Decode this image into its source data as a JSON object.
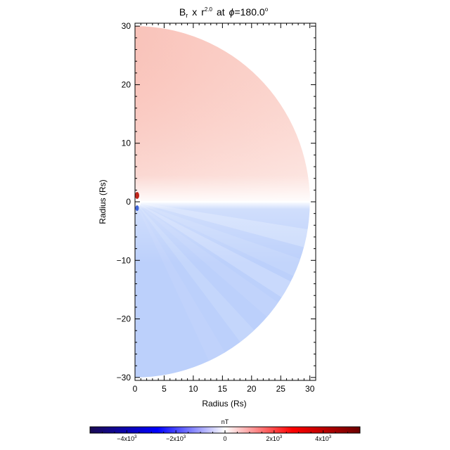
{
  "chart_data": {
    "type": "heatmap",
    "title": {
      "quantity": "B",
      "subscript": "r",
      "times": "x",
      "base": "r",
      "exponent": "2.0",
      "at": "at",
      "angle_symbol": "ϕ",
      "angle_value": "=180.0",
      "degree": "o"
    },
    "xlabel": "Radius (Rs)",
    "ylabel": "Radius (Rs)",
    "xlim": [
      0,
      31
    ],
    "ylim": [
      -30.5,
      30.5
    ],
    "x_ticks": [
      "0",
      "5",
      "10",
      "15",
      "20",
      "25",
      "30"
    ],
    "x_tick_values": [
      0,
      5,
      10,
      15,
      20,
      25,
      30
    ],
    "y_ticks": [
      "30",
      "20",
      "10",
      "0",
      "−10",
      "−20",
      "−30"
    ],
    "y_tick_values": [
      30,
      20,
      10,
      0,
      -10,
      -20,
      -30
    ],
    "domain": {
      "shape": "half-disk",
      "inner_radius": 1,
      "outer_radius": 30,
      "theta_range_deg": [
        -90,
        90
      ]
    },
    "field": {
      "north_value": 1200,
      "south_value": -1200,
      "current_sheet_y": 0,
      "sign_by_hemisphere": [
        "positive-north",
        "negative-south"
      ]
    },
    "colorbar": {
      "label": "nT",
      "range": [
        -5500,
        5500
      ],
      "colormap": [
        "#1a0a52",
        "#0000ff",
        "#ffffff",
        "#ff0000",
        "#6b0000"
      ],
      "tick_labels": [
        {
          "value": -4000,
          "mantissa": "−4x10",
          "exp": "3"
        },
        {
          "value": -2000,
          "mantissa": "−2x10",
          "exp": "3"
        },
        {
          "value": 0,
          "mantissa": "0",
          "exp": ""
        },
        {
          "value": 2000,
          "mantissa": "2x10",
          "exp": "3"
        },
        {
          "value": 4000,
          "mantissa": "4x10",
          "exp": "3"
        }
      ]
    }
  }
}
